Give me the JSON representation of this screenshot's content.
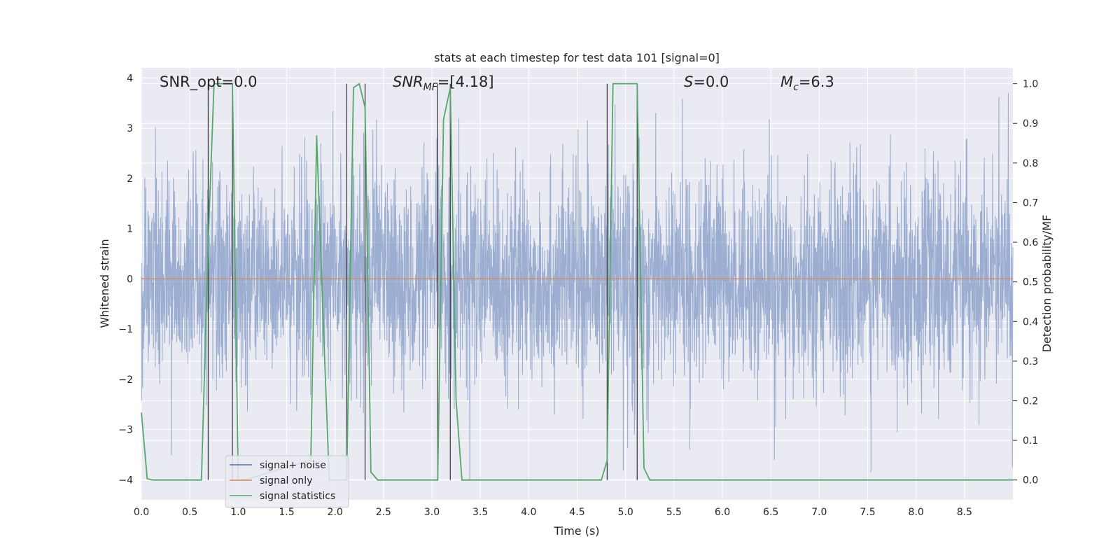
{
  "chart_data": {
    "type": "line",
    "title": "stats at each timestep for test data 101 [signal=0]",
    "xlabel": "Time (s)",
    "ylabel_left": "Whitened strain",
    "ylabel_right": "Detection probability/MF",
    "xlim": [
      0,
      9.0
    ],
    "ylim_left": [
      -4.4,
      4.2
    ],
    "ylim_right": [
      -0.05,
      1.04
    ],
    "x_ticks": [
      "0.0",
      "0.5",
      "1.0",
      "1.5",
      "2.0",
      "2.5",
      "3.0",
      "3.5",
      "4.0",
      "4.5",
      "5.0",
      "5.5",
      "6.0",
      "6.5",
      "7.0",
      "7.5",
      "8.0",
      "8.5"
    ],
    "y_ticks_left": [
      -4,
      -3,
      -2,
      -1,
      0,
      1,
      2,
      3,
      4
    ],
    "y_tick_labels_left": [
      "−4",
      "−3",
      "−2",
      "−1",
      "0",
      "1",
      "2",
      "3",
      "4"
    ],
    "y_ticks_right": [
      0.0,
      0.1,
      0.2,
      0.3,
      0.4,
      0.5,
      0.6,
      0.7,
      0.8,
      0.9,
      1.0
    ],
    "y_tick_labels_right": [
      "0.0",
      "0.1",
      "0.2",
      "0.3",
      "0.4",
      "0.5",
      "0.6",
      "0.7",
      "0.8",
      "0.9",
      "1.0"
    ],
    "grid": true,
    "background": "#eaeaf2",
    "annotations": {
      "snr_opt": "SNR_opt=0.0",
      "snr_mf_base": "SNR",
      "snr_mf_sub": "MF",
      "snr_mf_value": "=[4.18]",
      "s_symbol": "S",
      "s_value": "=0.0",
      "mc_symbol": "M",
      "mc_sub": "c",
      "mc_value": "=6.3"
    },
    "legend": {
      "placement": "lower-left",
      "entries": [
        {
          "label": "signal+ noise",
          "color": "#4c72b0"
        },
        {
          "label": "signal only",
          "color": "#dd8452"
        },
        {
          "label": "signal statistics",
          "color": "#55a868"
        }
      ]
    },
    "series": [
      {
        "name": "signal+ noise",
        "axis": "left",
        "color": "#4c72b0",
        "opacity": 0.5,
        "kind": "noise",
        "duration": 9.0,
        "typical_range": [
          -2.2,
          2.5
        ],
        "peak_range": [
          -4.0,
          3.7
        ]
      },
      {
        "name": "signal only",
        "axis": "left",
        "color": "#dd8452",
        "x": [
          0,
          9.0
        ],
        "y": [
          0,
          0
        ]
      },
      {
        "name": "signal statistics",
        "axis": "right",
        "color": "#55a868",
        "x": [
          0.0,
          0.06,
          0.12,
          0.62,
          0.69,
          0.75,
          0.94,
          1.0,
          1.06,
          1.75,
          1.81,
          1.87,
          1.94,
          2.12,
          2.19,
          2.25,
          2.31,
          2.37,
          2.44,
          3.06,
          3.12,
          3.19,
          3.25,
          3.31,
          4.75,
          4.81,
          4.87,
          5.12,
          5.19,
          5.25,
          9.0
        ],
        "y": [
          0.17,
          0.003,
          0.0,
          0.0,
          0.6,
          1.0,
          1.0,
          0.0,
          0.0,
          0.05,
          0.87,
          0.45,
          0.0,
          0.0,
          0.99,
          1.0,
          0.94,
          0.02,
          0.0,
          0.0,
          0.91,
          0.99,
          0.2,
          0.0,
          0.0,
          0.05,
          1.0,
          1.0,
          0.03,
          0.0,
          0.0
        ]
      }
    ],
    "vertical_lines": {
      "color": "#404040",
      "x": [
        0.69,
        0.94,
        2.12,
        2.31,
        3.06,
        3.19,
        4.81,
        5.12
      ]
    }
  }
}
